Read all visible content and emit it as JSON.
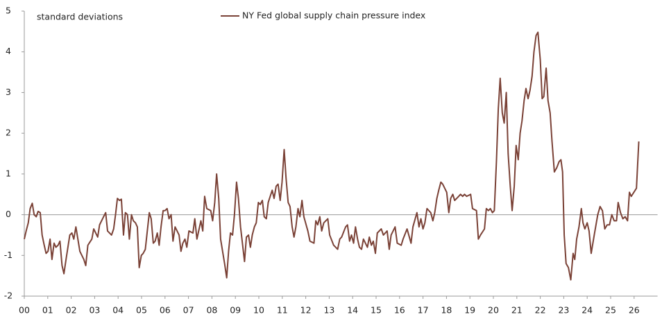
{
  "chart_data": {
    "type": "line",
    "subtitle": "standard deviations",
    "xlim": [
      0,
      27
    ],
    "ylim": [
      -2,
      5
    ],
    "yticks": [
      -2,
      -1,
      0,
      1,
      2,
      3,
      4,
      5
    ],
    "xticks": [
      {
        "value": 0,
        "label": "00"
      },
      {
        "value": 1,
        "label": "01"
      },
      {
        "value": 2,
        "label": "02"
      },
      {
        "value": 3,
        "label": "03"
      },
      {
        "value": 4,
        "label": "04"
      },
      {
        "value": 5,
        "label": "05"
      },
      {
        "value": 6,
        "label": "06"
      },
      {
        "value": 7,
        "label": "07"
      },
      {
        "value": 8,
        "label": "08"
      },
      {
        "value": 9,
        "label": "09"
      },
      {
        "value": 10,
        "label": "10"
      },
      {
        "value": 11,
        "label": "11"
      },
      {
        "value": 12,
        "label": "12"
      },
      {
        "value": 13,
        "label": "13"
      },
      {
        "value": 14,
        "label": "14"
      },
      {
        "value": 15,
        "label": "15"
      },
      {
        "value": 16,
        "label": "16"
      },
      {
        "value": 17,
        "label": "17"
      },
      {
        "value": 18,
        "label": "18"
      },
      {
        "value": 19,
        "label": "19"
      },
      {
        "value": 20,
        "label": "20"
      },
      {
        "value": 21,
        "label": "21"
      },
      {
        "value": 22,
        "label": "22"
      },
      {
        "value": 23,
        "label": "23"
      },
      {
        "value": 24,
        "label": "24"
      },
      {
        "value": 25,
        "label": "25"
      },
      {
        "value": 26,
        "label": "26"
      }
    ],
    "x": [
      0,
      0.08,
      0.17,
      0.25,
      0.34,
      0.42,
      0.51,
      0.59,
      0.68,
      0.76,
      0.85,
      0.93,
      1.01,
      1.1,
      1.18,
      1.27,
      1.35,
      1.44,
      1.52,
      1.61,
      1.69,
      1.78,
      1.94,
      2.03,
      2.11,
      2.2,
      2.37,
      2.54,
      2.62,
      2.71,
      2.88,
      2.96,
      3.13,
      3.21,
      3.38,
      3.47,
      3.55,
      3.72,
      3.81,
      3.89,
      3.97,
      4.06,
      4.14,
      4.23,
      4.31,
      4.4,
      4.48,
      4.57,
      4.65,
      4.74,
      4.82,
      4.9,
      4.99,
      5.07,
      5.16,
      5.33,
      5.41,
      5.5,
      5.58,
      5.67,
      5.75,
      5.83,
      5.92,
      6.0,
      6.09,
      6.17,
      6.26,
      6.34,
      6.43,
      6.6,
      6.68,
      6.76,
      6.85,
      6.93,
      7.02,
      7.19,
      7.27,
      7.36,
      7.53,
      7.61,
      7.69,
      7.78,
      7.95,
      8.03,
      8.12,
      8.2,
      8.29,
      8.37,
      8.54,
      8.63,
      8.71,
      8.79,
      8.88,
      8.96,
      9.05,
      9.13,
      9.22,
      9.39,
      9.47,
      9.56,
      9.64,
      9.72,
      9.81,
      9.89,
      9.98,
      10.06,
      10.15,
      10.23,
      10.32,
      10.4,
      10.57,
      10.65,
      10.74,
      10.82,
      10.91,
      10.99,
      11.08,
      11.16,
      11.25,
      11.33,
      11.42,
      11.5,
      11.58,
      11.67,
      11.75,
      11.84,
      11.92,
      12.09,
      12.18,
      12.35,
      12.43,
      12.51,
      12.6,
      12.68,
      12.77,
      12.94,
      13.02,
      13.19,
      13.36,
      13.45,
      13.53,
      13.7,
      13.78,
      13.87,
      13.95,
      14.04,
      14.12,
      14.21,
      14.29,
      14.38,
      14.46,
      14.63,
      14.71,
      14.8,
      14.88,
      14.97,
      15.05,
      15.22,
      15.31,
      15.47,
      15.56,
      15.64,
      15.81,
      15.9,
      16.07,
      16.15,
      16.32,
      16.49,
      16.57,
      16.74,
      16.83,
      16.91,
      17.0,
      17.08,
      17.17,
      17.33,
      17.42,
      17.5,
      17.59,
      17.67,
      17.76,
      17.84,
      18.01,
      18.1,
      18.18,
      18.27,
      18.35,
      18.52,
      18.6,
      18.69,
      18.77,
      18.86,
      19.03,
      19.11,
      19.28,
      19.36,
      19.45,
      19.62,
      19.7,
      19.79,
      19.87,
      19.96,
      20.04,
      20.13,
      20.21,
      20.29,
      20.38,
      20.46,
      20.55,
      20.63,
      20.72,
      20.8,
      20.89,
      20.97,
      21.06,
      21.14,
      21.22,
      21.31,
      21.39,
      21.48,
      21.56,
      21.65,
      21.73,
      21.82,
      21.9,
      22.0,
      22.08,
      22.15,
      22.25,
      22.33,
      22.42,
      22.5,
      22.6,
      22.7,
      22.8,
      22.88,
      22.95,
      23.02,
      23.1,
      23.2,
      23.3,
      23.4,
      23.47,
      23.55,
      23.65,
      23.75,
      23.82,
      23.9,
      24.0,
      24.08,
      24.17,
      24.3,
      24.45,
      24.55,
      24.65,
      24.75,
      24.85,
      24.95,
      25.05,
      25.15,
      25.25,
      25.32,
      25.42,
      25.52,
      25.62,
      25.72,
      25.8,
      25.88,
      26.1,
      26.2
    ],
    "series": [
      {
        "name": "NY Fed global supply chain pressure index",
        "color": "#7a4136",
        "values": [
          -0.6,
          -0.4,
          -0.2,
          0.15,
          0.28,
          0.0,
          -0.05,
          0.08,
          0.05,
          -0.5,
          -0.75,
          -0.95,
          -0.9,
          -0.6,
          -1.1,
          -0.7,
          -0.8,
          -0.75,
          -0.65,
          -1.25,
          -1.45,
          -1.1,
          -0.5,
          -0.45,
          -0.6,
          -0.3,
          -0.9,
          -1.1,
          -1.25,
          -0.75,
          -0.6,
          -0.35,
          -0.55,
          -0.25,
          -0.05,
          0.05,
          -0.4,
          -0.5,
          -0.35,
          0.0,
          0.4,
          0.35,
          0.38,
          -0.5,
          0.05,
          0.0,
          -0.6,
          0.0,
          -0.15,
          -0.2,
          -0.3,
          -1.3,
          -1.0,
          -0.95,
          -0.85,
          0.05,
          -0.1,
          -0.7,
          -0.65,
          -0.45,
          -0.75,
          -0.3,
          0.1,
          0.1,
          0.15,
          -0.1,
          0.0,
          -0.65,
          -0.3,
          -0.5,
          -0.9,
          -0.7,
          -0.6,
          -0.8,
          -0.4,
          -0.45,
          -0.1,
          -0.6,
          -0.15,
          -0.4,
          0.45,
          0.15,
          0.1,
          -0.15,
          0.3,
          1.0,
          0.4,
          -0.6,
          -1.2,
          -1.55,
          -0.9,
          -0.45,
          -0.5,
          0.0,
          0.8,
          0.4,
          -0.3,
          -1.15,
          -0.55,
          -0.5,
          -0.8,
          -0.5,
          -0.3,
          -0.2,
          0.3,
          0.25,
          0.35,
          -0.05,
          -0.1,
          0.3,
          0.6,
          0.4,
          0.7,
          0.75,
          0.35,
          0.8,
          1.6,
          0.9,
          0.3,
          0.2,
          -0.3,
          -0.55,
          -0.3,
          0.15,
          -0.05,
          0.35,
          -0.05,
          -0.4,
          -0.65,
          -0.7,
          -0.15,
          -0.25,
          -0.05,
          -0.4,
          -0.2,
          -0.1,
          -0.5,
          -0.75,
          -0.85,
          -0.6,
          -0.55,
          -0.3,
          -0.25,
          -0.65,
          -0.5,
          -0.7,
          -0.3,
          -0.6,
          -0.8,
          -0.85,
          -0.6,
          -0.8,
          -0.55,
          -0.75,
          -0.65,
          -0.95,
          -0.45,
          -0.35,
          -0.5,
          -0.4,
          -0.85,
          -0.5,
          -0.3,
          -0.7,
          -0.75,
          -0.6,
          -0.35,
          -0.7,
          -0.3,
          0.05,
          -0.3,
          -0.1,
          -0.35,
          -0.2,
          0.15,
          0.05,
          -0.15,
          0.05,
          0.4,
          0.6,
          0.8,
          0.75,
          0.55,
          0.05,
          0.4,
          0.5,
          0.35,
          0.45,
          0.5,
          0.45,
          0.5,
          0.45,
          0.5,
          0.15,
          0.1,
          -0.6,
          -0.5,
          -0.35,
          0.15,
          0.1,
          0.15,
          0.05,
          0.1,
          1.3,
          2.6,
          3.35,
          2.5,
          2.25,
          3.0,
          1.5,
          0.7,
          0.1,
          0.7,
          1.7,
          1.35,
          2.0,
          2.3,
          2.8,
          3.1,
          2.85,
          3.05,
          3.4,
          4.0,
          4.4,
          4.48,
          3.8,
          2.85,
          2.9,
          3.6,
          2.8,
          2.5,
          1.8,
          1.05,
          1.15,
          1.3,
          1.35,
          1.05,
          -0.5,
          -1.2,
          -1.3,
          -1.6,
          -0.95,
          -1.1,
          -0.6,
          -0.3,
          0.15,
          -0.2,
          -0.35,
          -0.2,
          -0.4,
          -0.95,
          -0.5,
          0.0,
          0.2,
          0.1,
          -0.35,
          -0.25,
          -0.25,
          0.0,
          -0.15,
          -0.15,
          0.3,
          0.05,
          -0.1,
          -0.05,
          -0.15,
          0.55,
          0.45,
          0.65,
          1.8
        ]
      }
    ]
  }
}
